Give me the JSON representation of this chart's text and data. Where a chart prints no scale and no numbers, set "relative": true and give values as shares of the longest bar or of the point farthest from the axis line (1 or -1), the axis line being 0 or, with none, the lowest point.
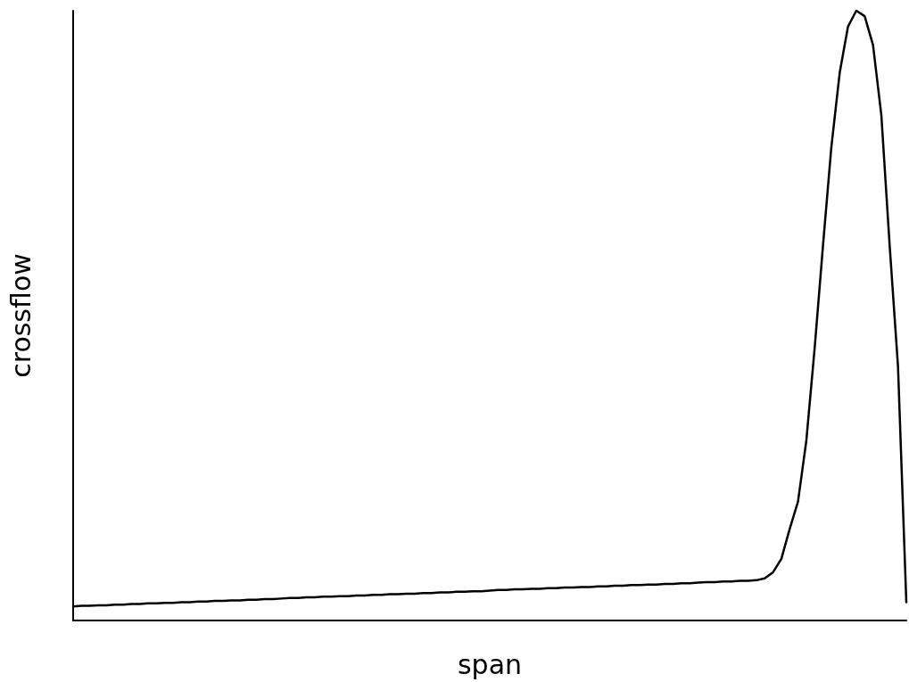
{
  "chart_data": {
    "type": "line",
    "relative": true,
    "xlabel": "span",
    "ylabel": "crossflow",
    "marker": "none",
    "line_style": "solid",
    "color": "#000000",
    "categories": [
      null,
      null,
      null,
      null,
      null,
      null,
      null,
      null,
      null,
      null,
      null,
      null,
      null,
      null,
      null,
      null,
      null,
      null,
      null,
      null,
      null,
      null,
      null,
      null,
      null,
      null,
      null,
      null,
      null,
      null,
      null,
      null,
      null,
      null,
      null,
      null,
      null,
      null,
      null,
      null,
      null,
      null,
      null,
      null,
      null,
      null,
      null,
      null,
      null,
      null,
      null,
      null,
      null,
      null,
      null,
      null,
      null,
      null,
      null,
      null,
      null,
      null,
      null,
      null,
      null,
      null,
      null,
      null,
      null,
      null,
      null,
      null,
      null,
      null,
      null,
      null,
      null,
      null,
      null,
      null,
      null,
      null,
      null,
      null,
      null,
      null,
      null,
      null,
      null,
      null,
      null,
      null,
      null,
      null,
      null,
      null,
      null,
      null,
      null,
      null,
      null
    ],
    "values": [
      0.023,
      0.024,
      0.024,
      0.025,
      0.025,
      0.026,
      0.026,
      0.027,
      0.027,
      0.028,
      0.028,
      0.029,
      0.029,
      0.03,
      0.03,
      0.031,
      0.031,
      0.032,
      0.032,
      0.033,
      0.033,
      0.034,
      0.034,
      0.035,
      0.035,
      0.036,
      0.037,
      0.037,
      0.038,
      0.038,
      0.039,
      0.039,
      0.04,
      0.04,
      0.041,
      0.041,
      0.042,
      0.042,
      0.043,
      0.043,
      0.044,
      0.044,
      0.045,
      0.045,
      0.046,
      0.046,
      0.047,
      0.047,
      0.048,
      0.048,
      0.049,
      0.05,
      0.05,
      0.051,
      0.051,
      0.052,
      0.052,
      0.053,
      0.053,
      0.054,
      0.054,
      0.055,
      0.055,
      0.056,
      0.056,
      0.057,
      0.057,
      0.058,
      0.058,
      0.059,
      0.059,
      0.06,
      0.06,
      0.061,
      0.061,
      0.062,
      0.063,
      0.063,
      0.064,
      0.064,
      0.065,
      0.065,
      0.066,
      0.069,
      0.079,
      0.101,
      0.15,
      0.195,
      0.295,
      0.447,
      0.615,
      0.776,
      0.898,
      0.974,
      1,
      0.991,
      0.944,
      0.829,
      0.615,
      0.417,
      0.03
    ]
  }
}
